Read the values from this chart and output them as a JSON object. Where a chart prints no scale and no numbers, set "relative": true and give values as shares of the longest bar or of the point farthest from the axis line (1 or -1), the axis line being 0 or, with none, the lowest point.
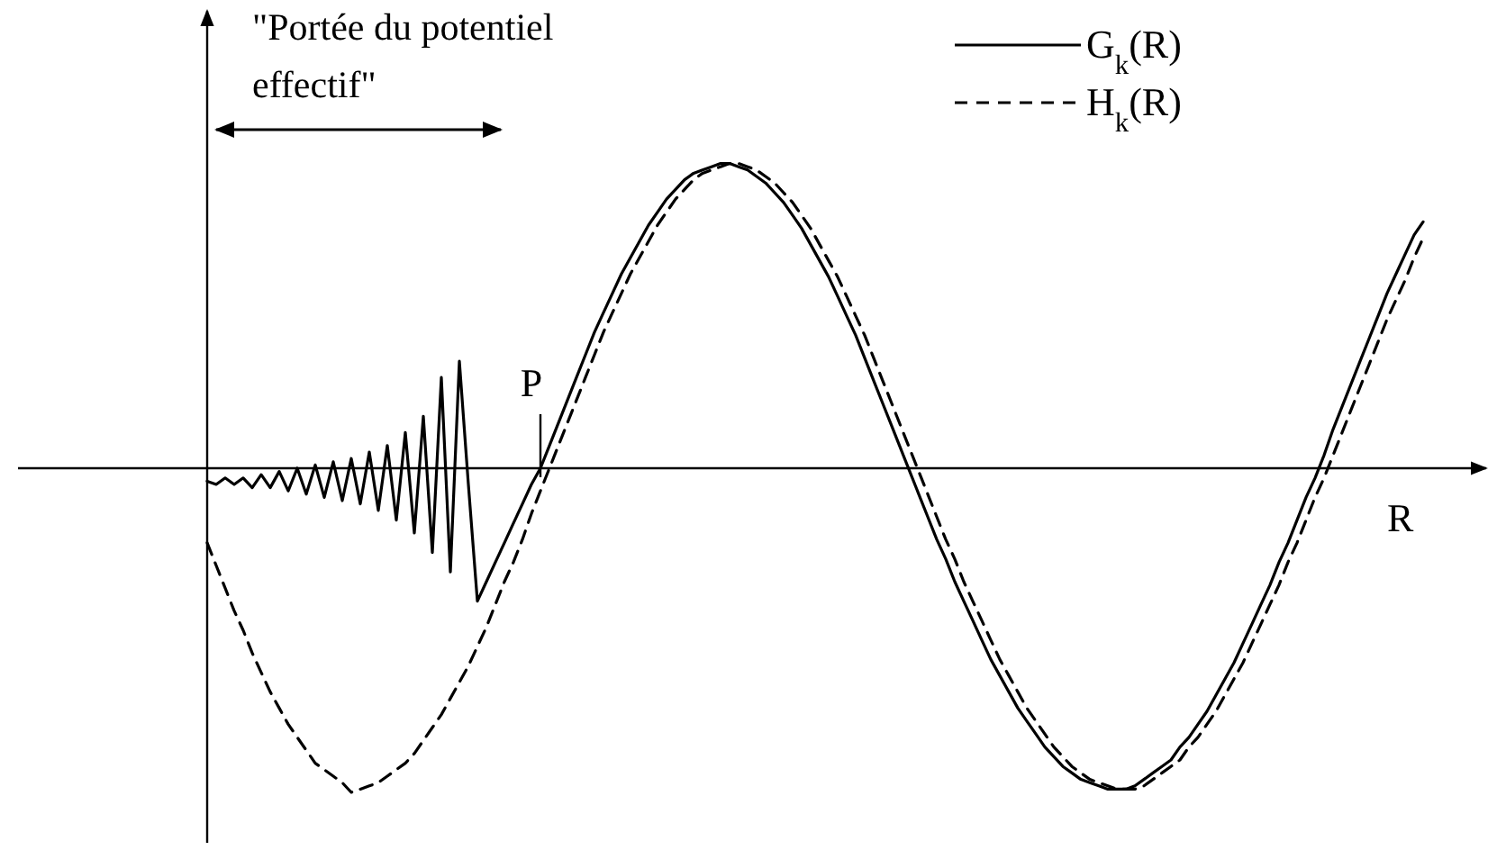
{
  "chart_data": {
    "type": "line",
    "relative": true,
    "xlabel": "R",
    "legend": "top right",
    "annotations": [
      "\"Portée du potentiel effectif\"",
      "P"
    ],
    "categories": [
      null,
      null,
      null,
      null,
      null,
      null,
      null,
      null,
      null,
      null,
      null,
      null,
      null,
      null,
      null,
      null,
      null,
      null,
      null,
      null,
      null,
      null,
      null,
      null,
      null,
      null,
      null,
      null,
      null,
      null,
      null,
      null,
      null,
      null,
      null,
      null,
      null,
      null,
      null,
      null,
      null,
      null,
      null,
      null,
      null,
      null,
      null,
      null,
      null,
      null,
      null,
      null,
      null,
      null,
      null,
      null,
      null,
      null,
      null,
      null,
      null,
      null,
      null,
      null,
      null,
      null,
      null,
      null,
      null,
      null,
      null,
      null,
      null,
      null,
      null,
      null,
      null,
      null,
      null,
      null,
      null,
      null,
      null,
      null,
      null,
      null,
      null,
      null,
      null,
      null,
      null,
      null,
      null,
      null,
      null,
      null,
      null,
      null,
      null,
      null,
      null,
      null,
      null,
      null,
      null,
      null,
      null,
      null,
      null,
      null,
      null,
      null,
      null,
      null,
      null,
      null,
      null,
      null,
      null,
      null,
      null,
      null,
      null,
      null,
      null,
      null,
      null,
      null,
      null,
      null,
      null,
      null,
      null,
      null,
      null,
      null
    ],
    "series": [
      {
        "name": "G$_{k}$(R)",
        "color": "#000000",
        "line_style": "solid",
        "values": [
          -0.04,
          -0.05,
          -0.03,
          -0.05,
          -0.03,
          -0.06,
          -0.02,
          -0.06,
          -0.01,
          -0.07,
          0.0,
          -0.08,
          0.01,
          -0.09,
          0.02,
          -0.1,
          0.03,
          -0.11,
          0.05,
          -0.13,
          0.07,
          -0.16,
          0.11,
          -0.2,
          0.16,
          -0.26,
          0.28,
          -0.32,
          0.33,
          -0.05,
          -0.41,
          -0.35,
          -0.29,
          -0.23,
          -0.17,
          -0.11,
          -0.05,
          0.0,
          0.07,
          0.14,
          0.21,
          0.28,
          0.35,
          0.42,
          0.48,
          0.54,
          0.6,
          0.65,
          0.7,
          0.75,
          0.79,
          0.83,
          0.86,
          0.89,
          0.91,
          0.92,
          0.93,
          0.94,
          0.94,
          0.93,
          0.92,
          0.9,
          0.88,
          0.85,
          0.82,
          0.78,
          0.74,
          0.69,
          0.64,
          0.59,
          0.53,
          0.47,
          0.41,
          0.34,
          0.27,
          0.2,
          0.13,
          0.06,
          -0.01,
          -0.08,
          -0.15,
          -0.22,
          -0.28,
          -0.35,
          -0.41,
          -0.47,
          -0.53,
          -0.59,
          -0.64,
          -0.69,
          -0.74,
          -0.78,
          -0.82,
          -0.86,
          -0.89,
          -0.92,
          -0.94,
          -0.96,
          -0.97,
          -0.98,
          -0.99,
          -0.99,
          -0.99,
          -0.98,
          -0.96,
          -0.94,
          -0.92,
          -0.9,
          -0.86,
          -0.83,
          -0.79,
          -0.75,
          -0.7,
          -0.65,
          -0.6,
          -0.54,
          -0.48,
          -0.42,
          -0.36,
          -0.29,
          -0.23,
          -0.16,
          -0.09,
          -0.03,
          0.04,
          0.12,
          0.19,
          0.26,
          0.33,
          0.4,
          0.47,
          0.54,
          0.6,
          0.66,
          0.72,
          0.76
        ]
      },
      {
        "name": "H$_{k}$(R)",
        "color": "#000000",
        "line_style": "dashed",
        "values": [
          -0.23,
          -0.3,
          -0.37,
          -0.44,
          -0.5,
          -0.57,
          -0.63,
          -0.69,
          -0.74,
          -0.79,
          -0.83,
          -0.87,
          -0.91,
          -0.93,
          -0.95,
          -0.97,
          -1.0,
          -0.99,
          -0.98,
          -0.97,
          -0.95,
          -0.93,
          -0.91,
          -0.88,
          -0.84,
          -0.8,
          -0.76,
          -0.71,
          -0.66,
          -0.61,
          -0.55,
          -0.49,
          -0.42,
          -0.35,
          -0.29,
          -0.22,
          -0.14,
          -0.07,
          0.0,
          0.07,
          0.14,
          0.21,
          0.28,
          0.35,
          0.42,
          0.48,
          0.54,
          0.6,
          0.65,
          0.7,
          0.75,
          0.79,
          0.83,
          0.86,
          0.89,
          0.91,
          0.92,
          0.93,
          0.94,
          0.94,
          0.93,
          0.92,
          0.9,
          0.88,
          0.85,
          0.82,
          0.78,
          0.74,
          0.69,
          0.64,
          0.59,
          0.53,
          0.47,
          0.41,
          0.34,
          0.27,
          0.2,
          0.13,
          0.06,
          -0.01,
          -0.08,
          -0.15,
          -0.22,
          -0.28,
          -0.35,
          -0.41,
          -0.47,
          -0.53,
          -0.59,
          -0.64,
          -0.69,
          -0.74,
          -0.78,
          -0.82,
          -0.86,
          -0.89,
          -0.92,
          -0.94,
          -0.96,
          -0.97,
          -0.98,
          -0.99,
          -0.99,
          -0.99,
          -0.98,
          -0.96,
          -0.94,
          -0.92,
          -0.9,
          -0.86,
          -0.83,
          -0.79,
          -0.75,
          -0.7,
          -0.65,
          -0.6,
          -0.54,
          -0.48,
          -0.42,
          -0.36,
          -0.29,
          -0.23,
          -0.16,
          -0.09,
          -0.03,
          0.04,
          0.11,
          0.18,
          0.25,
          0.32,
          0.39,
          0.46,
          0.52,
          0.58,
          0.65,
          0.71
        ]
      }
    ]
  }
}
